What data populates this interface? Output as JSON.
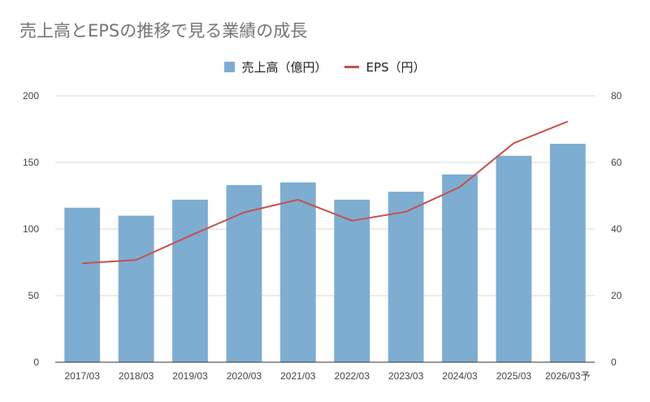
{
  "chart_data": {
    "type": "bar",
    "title": "売上高とEPSの推移で見る業績の成長",
    "categories": [
      "2017/03",
      "2018/03",
      "2019/03",
      "2020/03",
      "2021/03",
      "2022/03",
      "2023/03",
      "2024/03",
      "2025/03",
      "2026/03予"
    ],
    "series": [
      {
        "name": "売上高（億円）",
        "type": "bar",
        "axis": "left",
        "color": "#7eadd2",
        "values": [
          116,
          110,
          122,
          133,
          135,
          122,
          128,
          141,
          155,
          164
        ]
      },
      {
        "name": "EPS（円）",
        "type": "line",
        "axis": "right",
        "color": "#c8504a",
        "values": [
          29.7,
          30.7,
          38.0,
          45.0,
          48.8,
          42.5,
          45.2,
          52.6,
          65.8,
          72.3
        ]
      }
    ],
    "y_left": {
      "min": 0,
      "max": 200,
      "ticks": [
        0,
        50,
        100,
        150,
        200
      ]
    },
    "y_right": {
      "min": 0,
      "max": 80,
      "ticks": [
        0,
        20,
        40,
        60,
        80
      ]
    },
    "grid": true,
    "legend_position": "top-center"
  }
}
